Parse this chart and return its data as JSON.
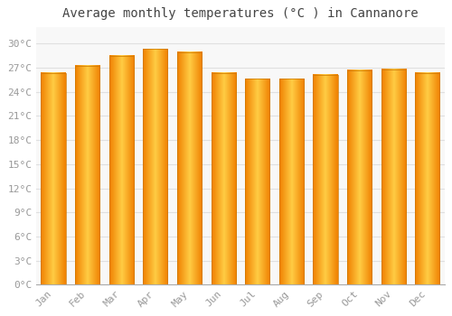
{
  "months": [
    "Jan",
    "Feb",
    "Mar",
    "Apr",
    "May",
    "Jun",
    "Jul",
    "Aug",
    "Sep",
    "Oct",
    "Nov",
    "Dec"
  ],
  "temperatures": [
    26.3,
    27.2,
    28.5,
    29.3,
    28.9,
    26.3,
    25.6,
    25.6,
    26.1,
    26.7,
    26.8,
    26.3
  ],
  "bar_color_center": "#FFB300",
  "bar_color_edge": "#F08000",
  "bar_color_highlight": "#FFCC44",
  "title": "Average monthly temperatures (°C ) in Cannanore",
  "ylim": [
    0,
    32
  ],
  "yticks": [
    0,
    3,
    6,
    9,
    12,
    15,
    18,
    21,
    24,
    27,
    30
  ],
  "ytick_labels": [
    "0°C",
    "3°C",
    "6°C",
    "9°C",
    "12°C",
    "15°C",
    "18°C",
    "21°C",
    "24°C",
    "27°C",
    "30°C"
  ],
  "background_color": "#FFFFFF",
  "plot_bg_color": "#F8F8F8",
  "grid_color": "#E0E0E0",
  "title_fontsize": 10,
  "tick_fontsize": 8,
  "font_family": "monospace",
  "tick_color": "#999999",
  "bar_width": 0.72
}
